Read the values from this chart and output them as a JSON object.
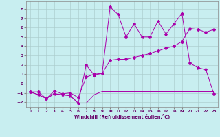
{
  "xlabel": "Windchill (Refroidissement éolien,°C)",
  "background_color": "#c8eef0",
  "grid_color": "#aacccc",
  "line_color": "#aa00aa",
  "xlim": [
    -0.5,
    23.5
  ],
  "ylim": [
    -2.5,
    8.8
  ],
  "xticks": [
    0,
    1,
    2,
    3,
    4,
    5,
    6,
    7,
    8,
    9,
    10,
    11,
    12,
    13,
    14,
    15,
    16,
    17,
    18,
    19,
    20,
    21,
    22,
    23
  ],
  "yticks": [
    -2,
    -1,
    0,
    1,
    2,
    3,
    4,
    5,
    6,
    7,
    8
  ],
  "series1_x": [
    0,
    1,
    2,
    3,
    4,
    5,
    6,
    7,
    8,
    9,
    10,
    11,
    12,
    13,
    14,
    15,
    16,
    17,
    18,
    19,
    20,
    21,
    22,
    23
  ],
  "series1_y": [
    -0.9,
    -1.2,
    -1.6,
    -1.1,
    -1.2,
    -1.3,
    -2.1,
    -2.1,
    -1.2,
    -0.85,
    -0.85,
    -0.85,
    -0.85,
    -0.85,
    -0.85,
    -0.85,
    -0.85,
    -0.85,
    -0.85,
    -0.85,
    -0.85,
    -0.85,
    -0.85,
    -0.85
  ],
  "series2_x": [
    0,
    1,
    2,
    3,
    4,
    5,
    6,
    7,
    8,
    9,
    10,
    11,
    12,
    13,
    14,
    15,
    16,
    17,
    18,
    19,
    20,
    21,
    22,
    23
  ],
  "series2_y": [
    -0.9,
    -1.2,
    -1.6,
    -1.1,
    -1.2,
    -1.3,
    -2.1,
    2.0,
    0.9,
    1.1,
    8.2,
    7.4,
    5.0,
    6.4,
    5.0,
    5.0,
    6.7,
    5.3,
    6.4,
    7.5,
    2.2,
    1.7,
    1.5,
    -1.1
  ],
  "series3_x": [
    0,
    1,
    2,
    3,
    4,
    5,
    6,
    7,
    8,
    9,
    10,
    11,
    12,
    13,
    14,
    15,
    16,
    17,
    18,
    19,
    20,
    21,
    22,
    23
  ],
  "series3_y": [
    -0.9,
    -0.9,
    -1.6,
    -0.8,
    -1.1,
    -1.0,
    -1.5,
    0.7,
    1.0,
    1.1,
    2.5,
    2.6,
    2.6,
    2.8,
    3.0,
    3.2,
    3.5,
    3.8,
    4.0,
    4.5,
    5.9,
    5.8,
    5.5,
    5.8
  ]
}
